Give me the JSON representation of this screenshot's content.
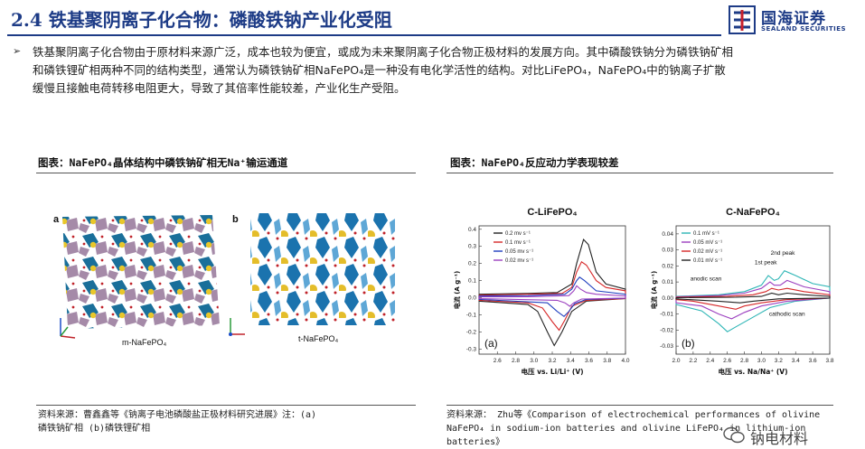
{
  "header": {
    "title": "2.4 铁基聚阴离子化合物：磷酸铁钠产业化受阻",
    "logo_cn": "国海证券",
    "logo_en": "SEALAND SECURITIES"
  },
  "bullet": {
    "symbol": "➢",
    "lines": [
      "铁基聚阴离子化合物由于原材料来源广泛，成本也较为便宜，或成为未来聚阴离子化合物正极材料的发展方向。其中磷酸铁钠分为磷铁钠矿相",
      "和磷铁锂矿相两种不同的结构类型，通常认为磷铁钠矿相NaFePO₄是一种没有电化学活性的结构。对比LiFePO₄，NaFePO₄中的钠离子扩散",
      "缓慢且接触电荷转移电阻更大，导致了其倍率性能较差，产业化生产受阻。"
    ]
  },
  "left_figure": {
    "title": "图表：NaFePO₄晶体结构中磷铁钠矿相无Na⁺输运通道",
    "panel_a_letter": "a",
    "panel_b_letter": "b",
    "caption_a": "m-NaFePO₄",
    "caption_b": "t-NaFePO₄",
    "source_lines": [
      "资料来源：曹鑫鑫等《钠离子电池磷酸盐正极材料研究进展》注：(a)",
      "磷铁钠矿相 (b)磷铁锂矿相"
    ]
  },
  "right_figure": {
    "title": "图表：NaFePO₄反应动力学表现较差",
    "source_lines": [
      "资料来源： Zhu等《Comparison of electrochemical performances of olivine",
      "NaFePO₄ in sodium-ion batteries and olivine LiFePO₄ in lithium-ion",
      "batteries》"
    ]
  },
  "chart_data": [
    {
      "type": "line",
      "title": "C-LiFePO₄",
      "panel": "(a)",
      "xlabel": "电压    vs. Li/Li⁺ (V)",
      "ylabel": "电流  (A g⁻¹)",
      "xlim": [
        2.5,
        4.0
      ],
      "ylim": [
        -0.33,
        0.42
      ],
      "xticks": [
        "2.6",
        "2.8",
        "3.0",
        "3.2",
        "3.4",
        "3.6",
        "3.8",
        "4.0"
      ],
      "yticks": [
        "0.4",
        "0.3",
        "0.2",
        "0.1",
        "0.0",
        "-0.1",
        "-0.2",
        "-0.3"
      ],
      "legend_position": "top-left",
      "series": [
        {
          "name": "0.2 mv s⁻¹",
          "color": "#222222",
          "upper": [
            [
              2.5,
              0.02
            ],
            [
              3.0,
              0.025
            ],
            [
              3.3,
              0.03
            ],
            [
              3.45,
              0.08
            ],
            [
              3.5,
              0.2
            ],
            [
              3.57,
              0.34
            ],
            [
              3.62,
              0.31
            ],
            [
              3.7,
              0.15
            ],
            [
              3.8,
              0.08
            ],
            [
              4.0,
              0.05
            ]
          ],
          "lower": [
            [
              4.0,
              -0.005
            ],
            [
              3.6,
              -0.02
            ],
            [
              3.45,
              -0.08
            ],
            [
              3.35,
              -0.2
            ],
            [
              3.27,
              -0.28
            ],
            [
              3.2,
              -0.2
            ],
            [
              3.1,
              -0.08
            ],
            [
              3.0,
              -0.04
            ],
            [
              2.5,
              -0.02
            ]
          ]
        },
        {
          "name": "0.1 mv s⁻¹",
          "color": "#d62728",
          "upper": [
            [
              2.5,
              0.015
            ],
            [
              3.0,
              0.02
            ],
            [
              3.35,
              0.025
            ],
            [
              3.45,
              0.06
            ],
            [
              3.5,
              0.15
            ],
            [
              3.55,
              0.21
            ],
            [
              3.6,
              0.19
            ],
            [
              3.7,
              0.1
            ],
            [
              3.8,
              0.06
            ],
            [
              4.0,
              0.04
            ]
          ],
          "lower": [
            [
              4.0,
              -0.005
            ],
            [
              3.6,
              -0.015
            ],
            [
              3.45,
              -0.05
            ],
            [
              3.38,
              -0.13
            ],
            [
              3.32,
              -0.19
            ],
            [
              3.25,
              -0.14
            ],
            [
              3.15,
              -0.06
            ],
            [
              3.0,
              -0.03
            ],
            [
              2.5,
              -0.015
            ]
          ]
        },
        {
          "name": "0.05 mv s⁻¹",
          "color": "#1f3fbf",
          "upper": [
            [
              2.5,
              0.01
            ],
            [
              3.0,
              0.012
            ],
            [
              3.38,
              0.02
            ],
            [
              3.45,
              0.05
            ],
            [
              3.5,
              0.1
            ],
            [
              3.53,
              0.12
            ],
            [
              3.58,
              0.1
            ],
            [
              3.7,
              0.04
            ],
            [
              4.0,
              0.02
            ]
          ],
          "lower": [
            [
              4.0,
              -0.003
            ],
            [
              3.6,
              -0.01
            ],
            [
              3.48,
              -0.035
            ],
            [
              3.42,
              -0.08
            ],
            [
              3.37,
              -0.11
            ],
            [
              3.3,
              -0.08
            ],
            [
              3.2,
              -0.03
            ],
            [
              2.5,
              -0.01
            ]
          ]
        },
        {
          "name": "0.02 mv s⁻¹",
          "color": "#9b3fbf",
          "upper": [
            [
              2.5,
              0.005
            ],
            [
              3.0,
              0.006
            ],
            [
              3.42,
              0.012
            ],
            [
              3.47,
              0.04
            ],
            [
              3.5,
              0.07
            ],
            [
              3.54,
              0.05
            ],
            [
              3.6,
              0.03
            ],
            [
              3.7,
              0.02
            ],
            [
              4.0,
              0.01
            ]
          ],
          "lower": [
            [
              4.0,
              -0.002
            ],
            [
              3.55,
              -0.008
            ],
            [
              3.47,
              -0.03
            ],
            [
              3.43,
              -0.05
            ],
            [
              3.38,
              -0.03
            ],
            [
              3.3,
              -0.015
            ],
            [
              2.5,
              -0.005
            ]
          ]
        }
      ]
    },
    {
      "type": "line",
      "title": "C-NaFePO₄",
      "panel": "(b)",
      "xlabel": "电压    vs. Na/Na⁺ (V)",
      "ylabel": "电流  (A g⁻¹)",
      "xlim": [
        2.0,
        3.8
      ],
      "ylim": [
        -0.035,
        0.045
      ],
      "xticks": [
        "2.0",
        "2.2",
        "2.4",
        "2.6",
        "2.8",
        "3.0",
        "3.2",
        "3.4",
        "3.6",
        "3.8"
      ],
      "yticks": [
        "0.04",
        "0.03",
        "0.02",
        "0.01",
        "0.00",
        "-0.01",
        "-0.02",
        "-0.03"
      ],
      "legend_position": "top-left",
      "annotations": [
        "1st peak",
        "2nd peak",
        "anodic scan",
        "cathodic scan"
      ],
      "series": [
        {
          "name": "0.1 mV s⁻¹",
          "color": "#2cb5b5",
          "upper": [
            [
              2.0,
              0.001
            ],
            [
              2.5,
              0.002
            ],
            [
              2.8,
              0.004
            ],
            [
              3.0,
              0.008
            ],
            [
              3.08,
              0.014
            ],
            [
              3.15,
              0.011
            ],
            [
              3.2,
              0.012
            ],
            [
              3.27,
              0.017
            ],
            [
              3.4,
              0.014
            ],
            [
              3.6,
              0.009
            ],
            [
              3.8,
              0.007
            ]
          ],
          "lower": [
            [
              3.8,
              0.0
            ],
            [
              3.4,
              -0.002
            ],
            [
              3.1,
              -0.006
            ],
            [
              2.9,
              -0.012
            ],
            [
              2.7,
              -0.018
            ],
            [
              2.6,
              -0.021
            ],
            [
              2.5,
              -0.016
            ],
            [
              2.3,
              -0.008
            ],
            [
              2.0,
              -0.004
            ]
          ]
        },
        {
          "name": "0.05 mV s⁻¹",
          "color": "#9b3fbf",
          "upper": [
            [
              2.0,
              0.0008
            ],
            [
              2.5,
              0.0015
            ],
            [
              2.8,
              0.003
            ],
            [
              3.0,
              0.006
            ],
            [
              3.1,
              0.01
            ],
            [
              3.15,
              0.008
            ],
            [
              3.22,
              0.008
            ],
            [
              3.3,
              0.011
            ],
            [
              3.5,
              0.007
            ],
            [
              3.8,
              0.004
            ]
          ],
          "lower": [
            [
              3.8,
              0.0
            ],
            [
              3.3,
              -0.002
            ],
            [
              3.0,
              -0.005
            ],
            [
              2.8,
              -0.009
            ],
            [
              2.65,
              -0.013
            ],
            [
              2.5,
              -0.01
            ],
            [
              2.3,
              -0.005
            ],
            [
              2.0,
              -0.003
            ]
          ]
        },
        {
          "name": "0.02 mV s⁻¹",
          "color": "#d62728",
          "upper": [
            [
              2.0,
              0.0005
            ],
            [
              2.6,
              0.001
            ],
            [
              2.9,
              0.002
            ],
            [
              3.05,
              0.004
            ],
            [
              3.12,
              0.006
            ],
            [
              3.2,
              0.005
            ],
            [
              3.3,
              0.006
            ],
            [
              3.5,
              0.004
            ],
            [
              3.8,
              0.002
            ]
          ],
          "lower": [
            [
              3.8,
              0.0
            ],
            [
              3.3,
              -0.001
            ],
            [
              3.0,
              -0.003
            ],
            [
              2.8,
              -0.005
            ],
            [
              2.7,
              -0.007
            ],
            [
              2.5,
              -0.005
            ],
            [
              2.2,
              -0.002
            ],
            [
              2.0,
              -0.001
            ]
          ]
        },
        {
          "name": "0.01 mV s⁻¹",
          "color": "#222222",
          "upper": [
            [
              2.0,
              0.0002
            ],
            [
              2.7,
              0.0005
            ],
            [
              3.0,
              0.001
            ],
            [
              3.12,
              0.003
            ],
            [
              3.2,
              0.002
            ],
            [
              3.3,
              0.003
            ],
            [
              3.5,
              0.002
            ],
            [
              3.8,
              0.001
            ]
          ],
          "lower": [
            [
              3.8,
              0.0
            ],
            [
              3.2,
              -0.0005
            ],
            [
              2.9,
              -0.002
            ],
            [
              2.75,
              -0.003
            ],
            [
              2.5,
              -0.002
            ],
            [
              2.0,
              -0.0005
            ]
          ]
        }
      ]
    }
  ],
  "watermark": {
    "text": "钠电材料"
  }
}
